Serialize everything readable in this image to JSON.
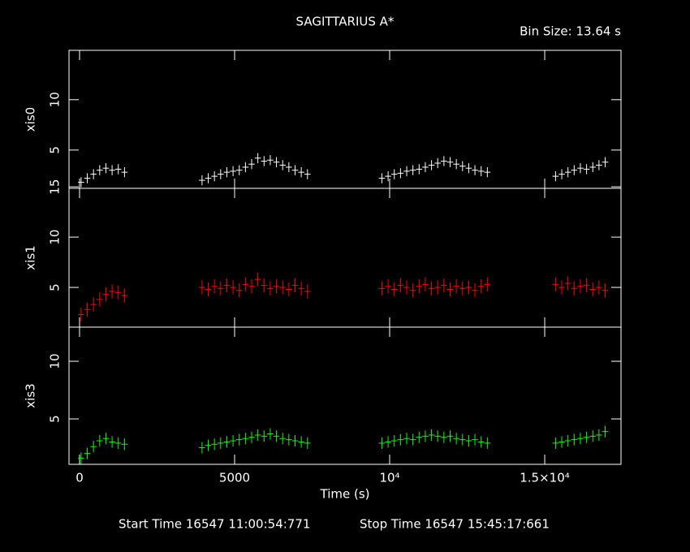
{
  "title": "SAGITTARIUS A*",
  "subtitle": "Bin Size: 13.64 s",
  "footer": [
    "Start Time 16547 11:00:54:771",
    "Stop Time 16547 15:45:17:661"
  ],
  "x_axis": {
    "label": "Time (s)",
    "xlim": [
      -340,
      17460
    ],
    "xticks": [
      0,
      5000,
      {
        "value": 10000,
        "label": "10⁴"
      },
      {
        "value": 15000,
        "label": "1.5×10⁴"
      }
    ],
    "x": [
      50,
      250,
      450,
      650,
      850,
      1050,
      1250,
      1450,
      3950,
      4150,
      4350,
      4550,
      4750,
      4950,
      5150,
      5350,
      5550,
      5750,
      5950,
      6150,
      6350,
      6550,
      6750,
      6950,
      7150,
      7350,
      9750,
      9950,
      10150,
      10350,
      10550,
      10750,
      10950,
      11150,
      11350,
      11550,
      11750,
      11950,
      12150,
      12350,
      12550,
      12750,
      12950,
      13150,
      15350,
      15550,
      15750,
      15950,
      16150,
      16350,
      16550,
      16750,
      16950
    ]
  },
  "chart_data": [
    {
      "type": "errorbar",
      "ylabel": "xis0",
      "ylim": [
        1.2,
        14.9
      ],
      "yticks": [
        5,
        10
      ],
      "series": [
        {
          "name": "xis0",
          "color": "#ffffff",
          "error": 0.5,
          "values": [
            1.8,
            2.2,
            2.6,
            3.0,
            3.2,
            3.0,
            3.1,
            2.8,
            2.0,
            2.2,
            2.4,
            2.6,
            2.8,
            2.9,
            3.0,
            3.3,
            3.6,
            4.2,
            3.9,
            4.0,
            3.8,
            3.5,
            3.3,
            3.0,
            2.8,
            2.6,
            2.2,
            2.4,
            2.6,
            2.7,
            2.9,
            3.0,
            3.1,
            3.3,
            3.5,
            3.7,
            3.9,
            3.8,
            3.6,
            3.4,
            3.2,
            3.0,
            2.9,
            2.8,
            2.4,
            2.6,
            2.8,
            3.0,
            3.2,
            3.1,
            3.3,
            3.5,
            3.8
          ]
        }
      ]
    },
    {
      "type": "errorbar",
      "ylabel": "xis1",
      "ylim": [
        1.05,
        14.85
      ],
      "yticks": [
        5,
        10,
        15
      ],
      "series": [
        {
          "name": "xis1",
          "color": "#ff0000",
          "error": 0.7,
          "values": [
            2.3,
            2.8,
            3.3,
            3.8,
            4.3,
            4.6,
            4.5,
            4.2,
            5.0,
            4.8,
            5.1,
            4.9,
            5.2,
            5.0,
            4.7,
            5.3,
            5.1,
            5.8,
            5.2,
            4.9,
            5.1,
            5.0,
            4.8,
            5.2,
            4.9,
            4.6,
            4.9,
            5.1,
            4.8,
            5.2,
            5.0,
            4.7,
            5.1,
            5.3,
            4.9,
            5.0,
            5.2,
            4.8,
            5.1,
            4.9,
            5.0,
            4.7,
            5.1,
            5.3,
            5.3,
            5.0,
            5.4,
            4.9,
            5.1,
            5.2,
            4.8,
            5.0,
            4.7
          ]
        }
      ]
    },
    {
      "type": "errorbar",
      "ylabel": "xis3",
      "ylim": [
        1.06,
        12.96
      ],
      "yticks": [
        5,
        10
      ],
      "series": [
        {
          "name": "xis3",
          "color": "#00ff00",
          "error": 0.5,
          "values": [
            1.6,
            2.0,
            2.6,
            3.1,
            3.3,
            3.0,
            2.9,
            2.8,
            2.5,
            2.7,
            2.8,
            2.9,
            3.0,
            3.1,
            3.2,
            3.3,
            3.4,
            3.6,
            3.5,
            3.7,
            3.5,
            3.3,
            3.2,
            3.1,
            3.0,
            2.9,
            2.9,
            3.0,
            3.1,
            3.2,
            3.3,
            3.2,
            3.4,
            3.5,
            3.6,
            3.5,
            3.4,
            3.5,
            3.3,
            3.2,
            3.1,
            3.2,
            3.0,
            2.9,
            2.9,
            3.0,
            3.1,
            3.2,
            3.3,
            3.4,
            3.5,
            3.6,
            3.9
          ]
        }
      ]
    }
  ]
}
